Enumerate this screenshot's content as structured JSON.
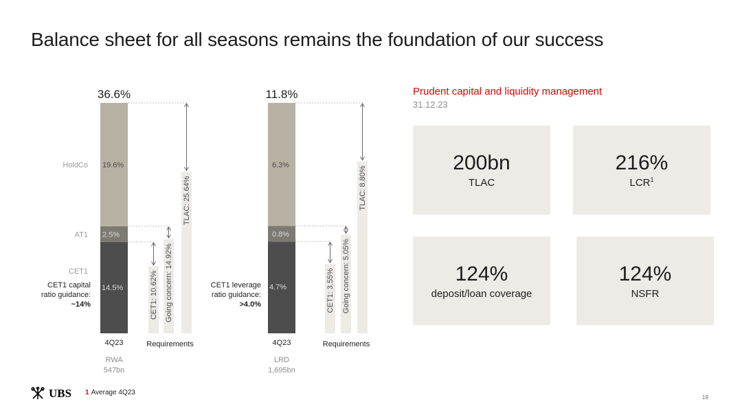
{
  "page": {
    "title": "Balance sheet for all seasons remains the foundation of our success"
  },
  "chart_data": [
    {
      "type": "bar",
      "stacked": true,
      "total_label": "36.6%",
      "category": "4Q23",
      "denominator_label": "RWA",
      "denominator_value": "547bn",
      "segments": [
        {
          "name": "CET1",
          "value": 14.5,
          "label": "14.5%",
          "color": "#4d4d4d"
        },
        {
          "name": "AT1",
          "value": 2.5,
          "label": "2.5%",
          "color": "#7d7a73"
        },
        {
          "name": "HoldCo",
          "value": 19.6,
          "label": "19.6%",
          "color": "#b8b2a4"
        }
      ],
      "guidance_lines": [
        "CET1 capital",
        "ratio guidance:",
        "~14%"
      ],
      "requirements_label": "Requirements",
      "requirements": [
        {
          "label": "CET1: 10.62%",
          "value": 10.62
        },
        {
          "label": "Going concern: 14.92%",
          "value": 14.92
        },
        {
          "label": "TLAC: 25.64%",
          "value": 25.64
        }
      ]
    },
    {
      "type": "bar",
      "stacked": true,
      "total_label": "11.8%",
      "category": "4Q23",
      "denominator_label": "LRD",
      "denominator_value": "1,695bn",
      "segments": [
        {
          "name": "CET1",
          "value": 4.7,
          "label": "4.7%",
          "color": "#4d4d4d"
        },
        {
          "name": "AT1",
          "value": 0.8,
          "label": "0.8%",
          "color": "#7d7a73"
        },
        {
          "name": "HoldCo",
          "value": 6.3,
          "label": "6.3%",
          "color": "#b8b2a4"
        }
      ],
      "guidance_lines": [
        "CET1 leverage",
        "ratio guidance:",
        ">4.0%"
      ],
      "requirements_label": "Requirements",
      "requirements": [
        {
          "label": "CET1: 3.55%",
          "value": 3.55
        },
        {
          "label": "Going concern: 5.05%",
          "value": 5.05
        },
        {
          "label": "TLAC: 8.80%",
          "value": 8.8
        }
      ]
    }
  ],
  "side_panel": {
    "heading": "Prudent capital and liquidity management",
    "date": "31.12.23",
    "kpis": [
      {
        "value": "200bn",
        "label": "TLAC",
        "sup": ""
      },
      {
        "value": "216%",
        "label": "LCR",
        "sup": "1"
      },
      {
        "value": "124%",
        "label": "deposit/loan coverage",
        "sup": ""
      },
      {
        "value": "124%",
        "label": "NSFR",
        "sup": ""
      }
    ]
  },
  "footer": {
    "logo_text": "UBS",
    "footnote_number": "1",
    "footnote_text": "Average 4Q23",
    "page_number": "19"
  },
  "colors": {
    "accent": "#e60000",
    "req_bar": "#ecebe6",
    "kpi_bg": "#ecebe6"
  }
}
